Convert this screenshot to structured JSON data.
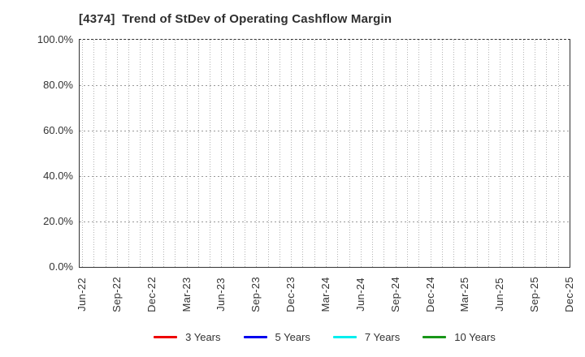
{
  "title": "[4374]  Trend of StDev of Operating Cashflow Margin",
  "chart_data": {
    "type": "line",
    "title": "[4374]  Trend of StDev of Operating Cashflow Margin",
    "xlabel": "",
    "ylabel": "",
    "ylim": [
      0,
      100
    ],
    "y_ticks": [
      "0.0%",
      "20.0%",
      "40.0%",
      "60.0%",
      "80.0%",
      "100.0%"
    ],
    "y_tick_values": [
      0,
      20,
      40,
      60,
      80,
      100
    ],
    "x_ticks": [
      "Jun-22",
      "Sep-22",
      "Dec-22",
      "Mar-23",
      "Jun-23",
      "Sep-23",
      "Dec-23",
      "Mar-24",
      "Jun-24",
      "Sep-24",
      "Dec-24",
      "Mar-25",
      "Jun-25",
      "Sep-25",
      "Dec-25"
    ],
    "x_minor_grid": "monthly",
    "grid": true,
    "legend_position": "bottom",
    "series": [
      {
        "name": "3 Years",
        "color": "#ee0000",
        "values": []
      },
      {
        "name": "5 Years",
        "color": "#0000ee",
        "values": []
      },
      {
        "name": "7 Years",
        "color": "#00eeee",
        "values": []
      },
      {
        "name": "10 Years",
        "color": "#189618",
        "values": []
      }
    ]
  }
}
